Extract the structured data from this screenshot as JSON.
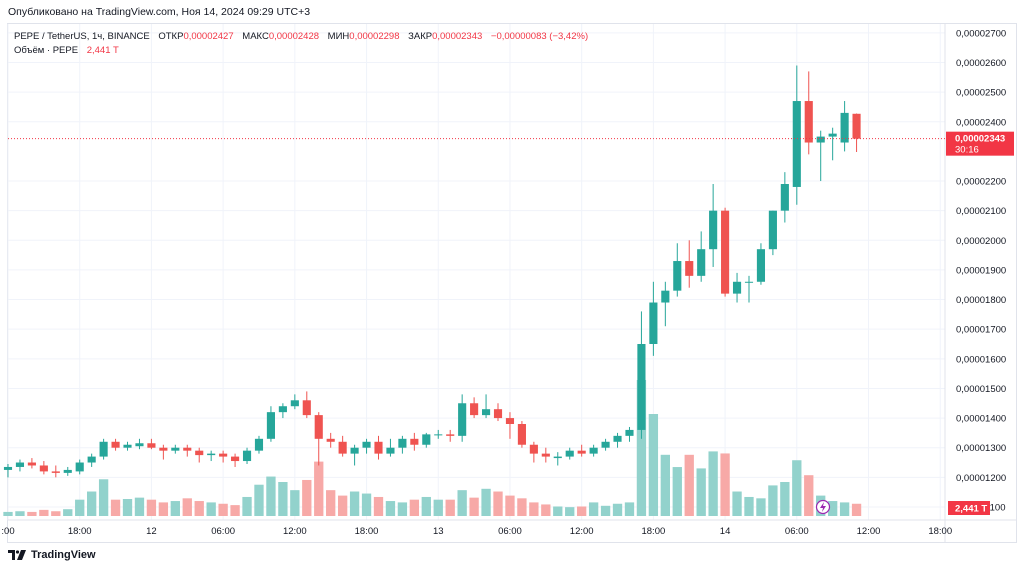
{
  "caption": "Опубликовано на TradingView.com, Ноя 14, 2024 09:29 UTC+3",
  "legend": {
    "symbol": "PEPE / TetherUS, 1ч, BINANCE",
    "open_label": "ОТКР",
    "open_value": "0,00002427",
    "high_label": "МАКС",
    "high_value": "0,00002428",
    "low_label": "МИН",
    "low_value": "0,00002298",
    "close_label": "ЗАКР",
    "close_value": "0,00002343",
    "change": "−0,00000083 (−3,42%)",
    "volume_label": "Объём · PEPE",
    "volume_value": "2,441 T"
  },
  "price_badge": {
    "price": "0,00002343",
    "countdown": "30:16"
  },
  "volume_badge": "2,441 T",
  "footer": {
    "brand": "TradingView"
  },
  "colors": {
    "up": "#26a69a",
    "down": "#ef5350",
    "up_vol": "#92d2cc",
    "down_vol": "#f7a9a7",
    "badge": "#f23645",
    "grid": "#f0f3fa"
  },
  "chart_data": {
    "type": "candlestick",
    "title": "PEPE / TetherUS, 1ч, BINANCE",
    "y_unit": "price (USDT)",
    "ylim": [
      1.056e-05,
      2.73e-05
    ],
    "y_ticks": [
      {
        "v": 1.1e-05,
        "label": "0,00001100"
      },
      {
        "v": 1.2e-05,
        "label": "0,00001200"
      },
      {
        "v": 1.3e-05,
        "label": "0,00001300"
      },
      {
        "v": 1.4e-05,
        "label": "0,00001400"
      },
      {
        "v": 1.5e-05,
        "label": "0,00001500"
      },
      {
        "v": 1.6e-05,
        "label": "0,00001600"
      },
      {
        "v": 1.7e-05,
        "label": "0,00001700"
      },
      {
        "v": 1.8e-05,
        "label": "0,00001800"
      },
      {
        "v": 1.9e-05,
        "label": "0,00001900"
      },
      {
        "v": 2e-05,
        "label": "0,00002000"
      },
      {
        "v": 2.1e-05,
        "label": "0,00002100"
      },
      {
        "v": 2.2e-05,
        "label": "0,00002200"
      },
      {
        "v": 2.4e-05,
        "label": "0,00002400"
      },
      {
        "v": 2.5e-05,
        "label": "0,00002500"
      },
      {
        "v": 2.6e-05,
        "label": "0,00002600"
      },
      {
        "v": 2.7e-05,
        "label": "0,00002700"
      }
    ],
    "x_range": [
      0,
      78.4
    ],
    "x_ticks": [
      {
        "t": 0,
        "label": ":00"
      },
      {
        "t": 6,
        "label": "18:00"
      },
      {
        "t": 12,
        "label": "12"
      },
      {
        "t": 18,
        "label": "06:00"
      },
      {
        "t": 24,
        "label": "12:00"
      },
      {
        "t": 30,
        "label": "18:00"
      },
      {
        "t": 36,
        "label": "13"
      },
      {
        "t": 42,
        "label": "06:00"
      },
      {
        "t": 48,
        "label": "12:00"
      },
      {
        "t": 54,
        "label": "18:00"
      },
      {
        "t": 60,
        "label": "14"
      },
      {
        "t": 66,
        "label": "06:00"
      },
      {
        "t": 72,
        "label": "12:00"
      },
      {
        "t": 78,
        "label": "18:00"
      }
    ],
    "vol_max": 1.0,
    "candles": [
      [
        1.225e-05,
        1.245e-05,
        1.2e-05,
        1.235e-05,
        0.06
      ],
      [
        1.235e-05,
        1.26e-05,
        1.22e-05,
        1.25e-05,
        0.07
      ],
      [
        1.25e-05,
        1.265e-05,
        1.23e-05,
        1.24e-05,
        0.06
      ],
      [
        1.24e-05,
        1.255e-05,
        1.21e-05,
        1.22e-05,
        0.09
      ],
      [
        1.22e-05,
        1.24e-05,
        1.2e-05,
        1.215e-05,
        0.07
      ],
      [
        1.215e-05,
        1.235e-05,
        1.205e-05,
        1.225e-05,
        0.1
      ],
      [
        1.22e-05,
        1.26e-05,
        1.21e-05,
        1.25e-05,
        0.24
      ],
      [
        1.25e-05,
        1.28e-05,
        1.235e-05,
        1.27e-05,
        0.36
      ],
      [
        1.27e-05,
        1.33e-05,
        1.26e-05,
        1.32e-05,
        0.54
      ],
      [
        1.32e-05,
        1.33e-05,
        1.29e-05,
        1.3e-05,
        0.24
      ],
      [
        1.3e-05,
        1.32e-05,
        1.29e-05,
        1.31e-05,
        0.25
      ],
      [
        1.305e-05,
        1.33e-05,
        1.295e-05,
        1.315e-05,
        0.27
      ],
      [
        1.315e-05,
        1.33e-05,
        1.295e-05,
        1.3e-05,
        0.24
      ],
      [
        1.3e-05,
        1.31e-05,
        1.26e-05,
        1.29e-05,
        0.2
      ],
      [
        1.29e-05,
        1.31e-05,
        1.28e-05,
        1.3e-05,
        0.22
      ],
      [
        1.3e-05,
        1.31e-05,
        1.27e-05,
        1.29e-05,
        0.26
      ],
      [
        1.29e-05,
        1.3e-05,
        1.25e-05,
        1.275e-05,
        0.22
      ],
      [
        1.275e-05,
        1.29e-05,
        1.255e-05,
        1.28e-05,
        0.2
      ],
      [
        1.28e-05,
        1.29e-05,
        1.25e-05,
        1.27e-05,
        0.18
      ],
      [
        1.27e-05,
        1.28e-05,
        1.235e-05,
        1.255e-05,
        0.16
      ],
      [
        1.255e-05,
        1.3e-05,
        1.245e-05,
        1.29e-05,
        0.28
      ],
      [
        1.29e-05,
        1.34e-05,
        1.28e-05,
        1.33e-05,
        0.46
      ],
      [
        1.33e-05,
        1.44e-05,
        1.32e-05,
        1.42e-05,
        0.58
      ],
      [
        1.42e-05,
        1.45e-05,
        1.4e-05,
        1.44e-05,
        0.5
      ],
      [
        1.44e-05,
        1.48e-05,
        1.43e-05,
        1.46e-05,
        0.38
      ],
      [
        1.46e-05,
        1.49e-05,
        1.4e-05,
        1.41e-05,
        0.53
      ],
      [
        1.41e-05,
        1.42e-05,
        1.24e-05,
        1.33e-05,
        0.8
      ],
      [
        1.33e-05,
        1.35e-05,
        1.3e-05,
        1.32e-05,
        0.38
      ],
      [
        1.32e-05,
        1.34e-05,
        1.27e-05,
        1.28e-05,
        0.3
      ],
      [
        1.28e-05,
        1.31e-05,
        1.24e-05,
        1.3e-05,
        0.36
      ],
      [
        1.3e-05,
        1.33e-05,
        1.28e-05,
        1.32e-05,
        0.33
      ],
      [
        1.32e-05,
        1.34e-05,
        1.26e-05,
        1.28e-05,
        0.28
      ],
      [
        1.28e-05,
        1.33e-05,
        1.27e-05,
        1.3e-05,
        0.22
      ],
      [
        1.3e-05,
        1.34e-05,
        1.28e-05,
        1.33e-05,
        0.2
      ],
      [
        1.33e-05,
        1.35e-05,
        1.29e-05,
        1.31e-05,
        0.24
      ],
      [
        1.31e-05,
        1.35e-05,
        1.3e-05,
        1.345e-05,
        0.28
      ],
      [
        1.345e-05,
        1.36e-05,
        1.33e-05,
        1.345e-05,
        0.24
      ],
      [
        1.345e-05,
        1.36e-05,
        1.32e-05,
        1.34e-05,
        0.24
      ],
      [
        1.34e-05,
        1.48e-05,
        1.32e-05,
        1.45e-05,
        0.38
      ],
      [
        1.45e-05,
        1.47e-05,
        1.4e-05,
        1.41e-05,
        0.27
      ],
      [
        1.41e-05,
        1.48e-05,
        1.4e-05,
        1.43e-05,
        0.4
      ],
      [
        1.43e-05,
        1.45e-05,
        1.39e-05,
        1.4e-05,
        0.36
      ],
      [
        1.4e-05,
        1.42e-05,
        1.33e-05,
        1.38e-05,
        0.3
      ],
      [
        1.38e-05,
        1.39e-05,
        1.3e-05,
        1.31e-05,
        0.26
      ],
      [
        1.31e-05,
        1.32e-05,
        1.25e-05,
        1.28e-05,
        0.2
      ],
      [
        1.28e-05,
        1.3e-05,
        1.25e-05,
        1.27e-05,
        0.17
      ],
      [
        1.265e-05,
        1.285e-05,
        1.24e-05,
        1.27e-05,
        0.14
      ],
      [
        1.27e-05,
        1.3e-05,
        1.26e-05,
        1.29e-05,
        0.13
      ],
      [
        1.29e-05,
        1.31e-05,
        1.27e-05,
        1.28e-05,
        0.14
      ],
      [
        1.28e-05,
        1.31e-05,
        1.27e-05,
        1.3e-05,
        0.2
      ],
      [
        1.3e-05,
        1.33e-05,
        1.29e-05,
        1.32e-05,
        0.15
      ],
      [
        1.32e-05,
        1.35e-05,
        1.3e-05,
        1.34e-05,
        0.18
      ],
      [
        1.34e-05,
        1.37e-05,
        1.32e-05,
        1.36e-05,
        0.2
      ],
      [
        1.36e-05,
        1.76e-05,
        1.33e-05,
        1.65e-05,
        2.0
      ],
      [
        1.65e-05,
        1.86e-05,
        1.61e-05,
        1.79e-05,
        1.5
      ],
      [
        1.79e-05,
        1.86e-05,
        1.71e-05,
        1.83e-05,
        0.9
      ],
      [
        1.83e-05,
        1.99e-05,
        1.81e-05,
        1.93e-05,
        0.72
      ],
      [
        1.93e-05,
        2e-05,
        1.84e-05,
        1.88e-05,
        0.9
      ],
      [
        1.88e-05,
        2.03e-05,
        1.86e-05,
        1.97e-05,
        0.7
      ],
      [
        1.97e-05,
        2.19e-05,
        1.91e-05,
        2.1e-05,
        0.95
      ],
      [
        2.1e-05,
        2.11e-05,
        1.81e-05,
        1.82e-05,
        0.92
      ],
      [
        1.82e-05,
        1.89e-05,
        1.79e-05,
        1.86e-05,
        0.36
      ],
      [
        1.86e-05,
        1.88e-05,
        1.79e-05,
        1.86e-05,
        0.28
      ],
      [
        1.86e-05,
        1.99e-05,
        1.85e-05,
        1.97e-05,
        0.26
      ],
      [
        1.97e-05,
        2.1e-05,
        1.95e-05,
        2.1e-05,
        0.45
      ],
      [
        2.1e-05,
        2.23e-05,
        2.06e-05,
        2.19e-05,
        0.5
      ],
      [
        2.18e-05,
        2.59e-05,
        2.12e-05,
        2.47e-05,
        0.82
      ],
      [
        2.47e-05,
        2.57e-05,
        2.29e-05,
        2.33e-05,
        0.6
      ],
      [
        2.33e-05,
        2.37e-05,
        2.2e-05,
        2.35e-05,
        0.3
      ],
      [
        2.35e-05,
        2.38e-05,
        2.27e-05,
        2.36e-05,
        0.22
      ],
      [
        2.33e-05,
        2.47e-05,
        2.3e-05,
        2.43e-05,
        0.2
      ],
      [
        2.427e-05,
        2.428e-05,
        2.298e-05,
        2.343e-05,
        0.18
      ]
    ]
  }
}
